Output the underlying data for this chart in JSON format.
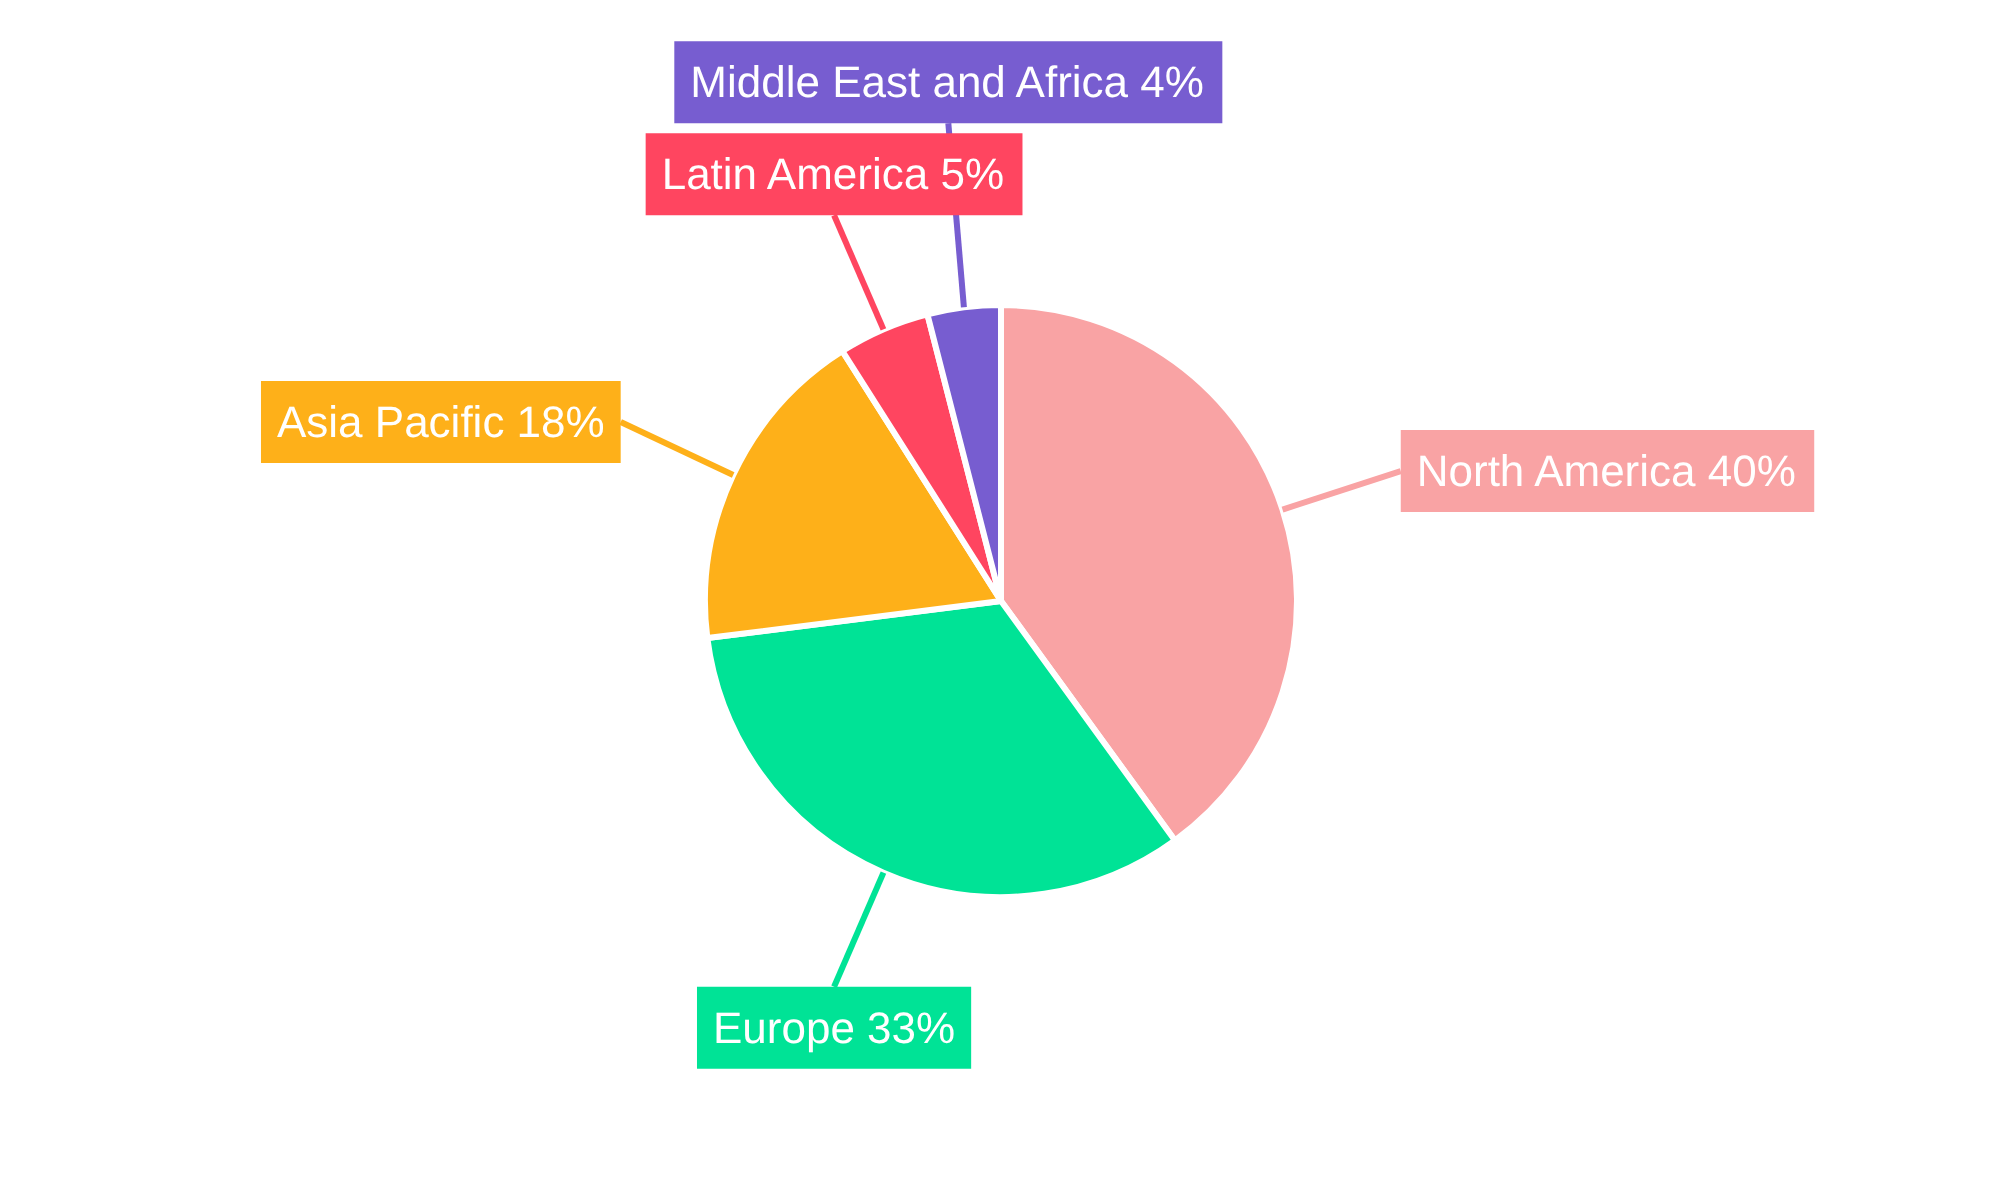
{
  "chart_data": {
    "type": "pie",
    "categories": [
      "North America",
      "Europe",
      "Asia Pacific",
      "Latin America",
      "Middle East and Africa"
    ],
    "values": [
      40,
      33,
      18,
      5,
      4
    ],
    "colors": [
      "#f9a3a4",
      "#00e396",
      "#feb019",
      "#ff4560",
      "#775dd0"
    ],
    "value_labels": [
      "40%",
      "33%",
      "18%",
      "5%",
      "4%"
    ]
  }
}
